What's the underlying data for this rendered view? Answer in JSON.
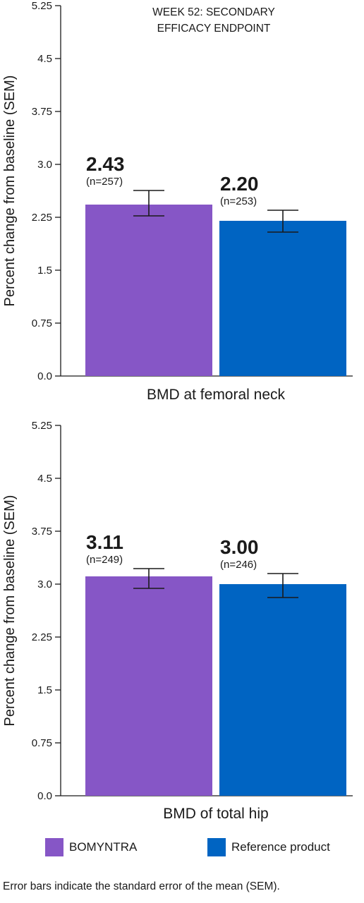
{
  "colors": {
    "purple": "#8656c6",
    "blue": "#0064c2",
    "axis": "#1a1a1a"
  },
  "legend": [
    {
      "label": "BOMYNTRA",
      "color": "#8656c6"
    },
    {
      "label": "Reference product",
      "color": "#0064c2"
    }
  ],
  "footnote": "Error bars indicate the standard error of the mean (SEM).",
  "chart_data": [
    {
      "type": "bar",
      "annotation_lines": [
        "WEEK 52: SECONDARY",
        "EFFICACY ENDPOINT"
      ],
      "ylabel": "Percent change from baseline (SEM)",
      "xlabel": "BMD at femoral neck",
      "yticks": [
        "0.0",
        "0.75",
        "1.5",
        "2.25",
        "3.0",
        "3.75",
        "4.5",
        "5.25"
      ],
      "ylim": [
        0,
        5.25
      ],
      "series": [
        {
          "name": "BOMYNTRA",
          "value": 2.43,
          "label": "2.43",
          "n_label": "(n=257)",
          "err_low": 2.27,
          "err_high": 2.63
        },
        {
          "name": "Reference product",
          "value": 2.2,
          "label": "2.20",
          "n_label": "(n=253)",
          "err_low": 2.04,
          "err_high": 2.35
        }
      ]
    },
    {
      "type": "bar",
      "annotation_lines": [],
      "ylabel": "Percent change from baseline (SEM)",
      "xlabel": "BMD of total hip",
      "yticks": [
        "0.0",
        "0.75",
        "1.5",
        "2.25",
        "3.0",
        "3.75",
        "4.5",
        "5.25"
      ],
      "ylim": [
        0,
        5.25
      ],
      "series": [
        {
          "name": "BOMYNTRA",
          "value": 3.11,
          "label": "3.11",
          "n_label": "(n=249)",
          "err_low": 2.94,
          "err_high": 3.22
        },
        {
          "name": "Reference product",
          "value": 3.0,
          "label": "3.00",
          "n_label": "(n=246)",
          "err_low": 2.81,
          "err_high": 3.15
        }
      ]
    }
  ]
}
